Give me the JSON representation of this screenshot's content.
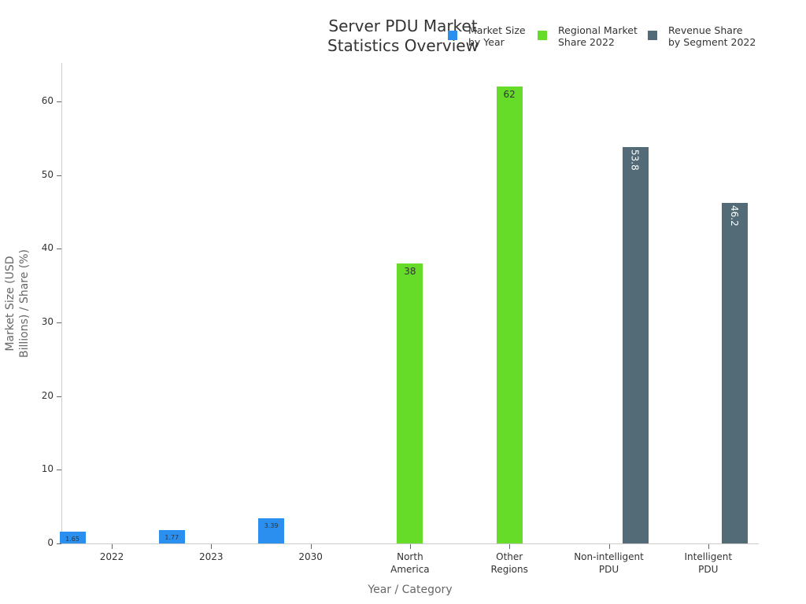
{
  "chart_data": {
    "type": "bar",
    "title": "Server PDU Market\nStatistics Overview",
    "title_lines": [
      "Server PDU Market",
      "Statistics Overview"
    ],
    "xlabel": "Year / Category",
    "ylabel": "Market Size (USD\nBillions) / Share (%)",
    "ylim": [
      0,
      65.3
    ],
    "yticks": [
      0,
      10,
      20,
      30,
      40,
      50,
      60
    ],
    "grid": false,
    "legend_position": "top-right",
    "categories": [
      "2022",
      "2023",
      "2030",
      "North\nAmerica",
      "Other\nRegions",
      "Non-intelligent\nPDU",
      "Intelligent\nPDU"
    ],
    "series": [
      {
        "name": "Market Size\nby Year",
        "color": "#2b8ff0",
        "offset": -50,
        "label_size": 8,
        "values": [
          1.65,
          1.77,
          3.39,
          null,
          null,
          null,
          null
        ],
        "labels": [
          "1.65",
          "1.77",
          "3.39",
          null,
          null,
          null,
          null
        ]
      },
      {
        "name": "Regional Market\nShare 2022",
        "color": "#66dc28",
        "offset": 0,
        "label_size": 12,
        "values": [
          null,
          null,
          null,
          38,
          62,
          null,
          null
        ],
        "labels": [
          null,
          null,
          null,
          "38",
          "62",
          null,
          null
        ]
      },
      {
        "name": "Revenue Share\nby Segment 2022",
        "color": "#526b76",
        "offset": 34,
        "label_size": 12,
        "rotated": true,
        "values": [
          null,
          null,
          null,
          null,
          null,
          53.8,
          46.2
        ],
        "labels": [
          null,
          null,
          null,
          null,
          null,
          "53.8",
          "46.2"
        ]
      }
    ]
  }
}
